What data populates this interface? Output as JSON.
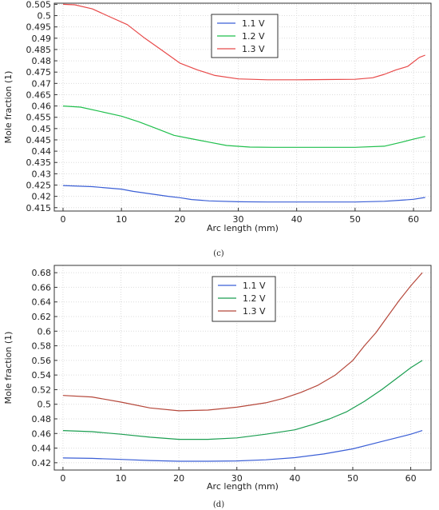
{
  "chart_data": [
    {
      "type": "line",
      "caption": "(c)",
      "xlabel": "Arc length (mm)",
      "ylabel": "Mole fraction (1)",
      "xlim": [
        -1.5,
        63
      ],
      "ylim": [
        0.4135,
        0.5055
      ],
      "xticks": [
        0,
        10,
        20,
        30,
        40,
        50,
        60
      ],
      "yticks": [
        0.415,
        0.42,
        0.425,
        0.43,
        0.435,
        0.44,
        0.445,
        0.45,
        0.455,
        0.46,
        0.465,
        0.47,
        0.475,
        0.48,
        0.485,
        0.49,
        0.495,
        0.5,
        0.505
      ],
      "ytick_labels": [
        "0.415",
        "0.42",
        "0.425",
        "0.43",
        "0.435",
        "0.44",
        "0.445",
        "0.45",
        "0.455",
        "0.46",
        "0.465",
        "0.47",
        "0.475",
        "0.48",
        "0.485",
        "0.49",
        "0.495",
        "0.5",
        "0.505"
      ],
      "grid": true,
      "legend_position": "top-center",
      "series": [
        {
          "name": "1.1 V",
          "color": "#3b5fd6",
          "x": [
            0,
            5,
            10,
            12,
            15,
            18,
            20,
            22,
            25,
            30,
            35,
            40,
            45,
            50,
            55,
            58,
            60,
            62
          ],
          "y": [
            0.4248,
            0.4243,
            0.4232,
            0.4222,
            0.4211,
            0.42,
            0.4194,
            0.4186,
            0.418,
            0.4176,
            0.4175,
            0.4175,
            0.4175,
            0.4175,
            0.4178,
            0.4183,
            0.4187,
            0.4195
          ]
        },
        {
          "name": "1.2 V",
          "color": "#1fbf4c",
          "x": [
            0,
            3,
            6,
            10,
            13,
            16,
            19,
            22,
            25,
            28,
            32,
            36,
            40,
            45,
            50,
            55,
            58,
            60,
            62
          ],
          "y": [
            0.46,
            0.4595,
            0.4578,
            0.4555,
            0.453,
            0.45,
            0.447,
            0.4455,
            0.444,
            0.4425,
            0.4418,
            0.4417,
            0.4417,
            0.4417,
            0.4417,
            0.4422,
            0.444,
            0.4453,
            0.4465
          ]
        },
        {
          "name": "1.3 V",
          "color": "#e84a4a",
          "x": [
            0,
            2,
            5,
            8,
            11,
            14,
            17,
            20,
            23,
            26,
            30,
            35,
            40,
            45,
            50,
            53,
            55,
            57,
            59,
            61,
            62
          ],
          "y": [
            0.505,
            0.5048,
            0.503,
            0.4995,
            0.496,
            0.49,
            0.4845,
            0.479,
            0.476,
            0.4735,
            0.472,
            0.4716,
            0.4716,
            0.4717,
            0.4718,
            0.4725,
            0.474,
            0.476,
            0.4775,
            0.4815,
            0.4825
          ]
        }
      ]
    },
    {
      "type": "line",
      "caption": "(d)",
      "xlabel": "Arc length (mm)",
      "ylabel": "Mole fraction (1)",
      "xlim": [
        -1.5,
        63.5
      ],
      "ylim": [
        0.41,
        0.69
      ],
      "xticks": [
        0,
        10,
        20,
        30,
        40,
        50,
        60
      ],
      "yticks": [
        0.42,
        0.44,
        0.46,
        0.48,
        0.5,
        0.52,
        0.54,
        0.56,
        0.58,
        0.6,
        0.62,
        0.64,
        0.66,
        0.68
      ],
      "ytick_labels": [
        "0.42",
        "0.44",
        "0.46",
        "0.48",
        "0.5",
        "0.52",
        "0.54",
        "0.56",
        "0.58",
        "0.6",
        "0.62",
        "0.64",
        "0.66",
        "0.68"
      ],
      "grid": true,
      "legend_position": "top-center",
      "series": [
        {
          "name": "1.1 V",
          "color": "#3b5fd6",
          "x": [
            0,
            5,
            10,
            15,
            20,
            25,
            30,
            35,
            40,
            45,
            50,
            55,
            60,
            62
          ],
          "y": [
            0.4265,
            0.426,
            0.4245,
            0.423,
            0.422,
            0.422,
            0.4225,
            0.424,
            0.427,
            0.432,
            0.439,
            0.449,
            0.459,
            0.464
          ]
        },
        {
          "name": "1.2 V",
          "color": "#1a9e50",
          "x": [
            0,
            5,
            10,
            15,
            20,
            25,
            30,
            35,
            40,
            43,
            46,
            49,
            52,
            55,
            58,
            60,
            62
          ],
          "y": [
            0.464,
            0.4625,
            0.459,
            0.455,
            0.452,
            0.452,
            0.454,
            0.459,
            0.465,
            0.472,
            0.48,
            0.49,
            0.504,
            0.52,
            0.538,
            0.55,
            0.56
          ]
        },
        {
          "name": "1.3 V",
          "color": "#b5473a",
          "x": [
            0,
            5,
            10,
            15,
            20,
            25,
            30,
            35,
            38,
            41,
            44,
            47,
            50,
            52,
            54,
            56,
            58,
            60,
            62
          ],
          "y": [
            0.512,
            0.51,
            0.503,
            0.495,
            0.491,
            0.492,
            0.496,
            0.502,
            0.508,
            0.516,
            0.526,
            0.54,
            0.56,
            0.58,
            0.598,
            0.62,
            0.642,
            0.662,
            0.68
          ]
        }
      ]
    }
  ]
}
